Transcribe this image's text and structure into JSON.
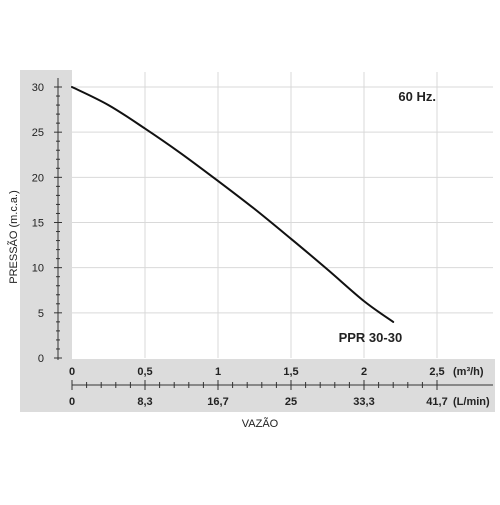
{
  "colors": {
    "axis_band": "#dcdcdc",
    "plot_background": "#ffffff",
    "grid": "#d9d9d9",
    "curve": "#111111",
    "text": "#222222"
  },
  "chart_data": {
    "type": "line",
    "title": "",
    "annotation_frequency": "60 Hz.",
    "ylabel": "PRESSÃO (m.c.a.)",
    "xlabel": "VAZÃO",
    "ylim": [
      0,
      30
    ],
    "xlim": [
      0,
      2.5
    ],
    "grid": true,
    "y_ticks": [
      "0",
      "5",
      "10",
      "15",
      "20",
      "25",
      "30"
    ],
    "x_ticks_primary": [
      "0",
      "0,5",
      "1",
      "1,5",
      "2",
      "2,5"
    ],
    "x_unit_primary": "(m³/h)",
    "x_ticks_secondary": [
      "0",
      "8,3",
      "16,7",
      "25",
      "33,3",
      "41,7"
    ],
    "x_unit_secondary": "(L/min)",
    "series": [
      {
        "name": "PPR 30-30",
        "x": [
          0,
          0.25,
          0.5,
          0.75,
          1.0,
          1.25,
          1.5,
          1.75,
          2.0,
          2.2
        ],
        "y": [
          30,
          28.0,
          25.4,
          22.6,
          19.6,
          16.5,
          13.2,
          9.8,
          6.3,
          4.0
        ]
      }
    ]
  }
}
